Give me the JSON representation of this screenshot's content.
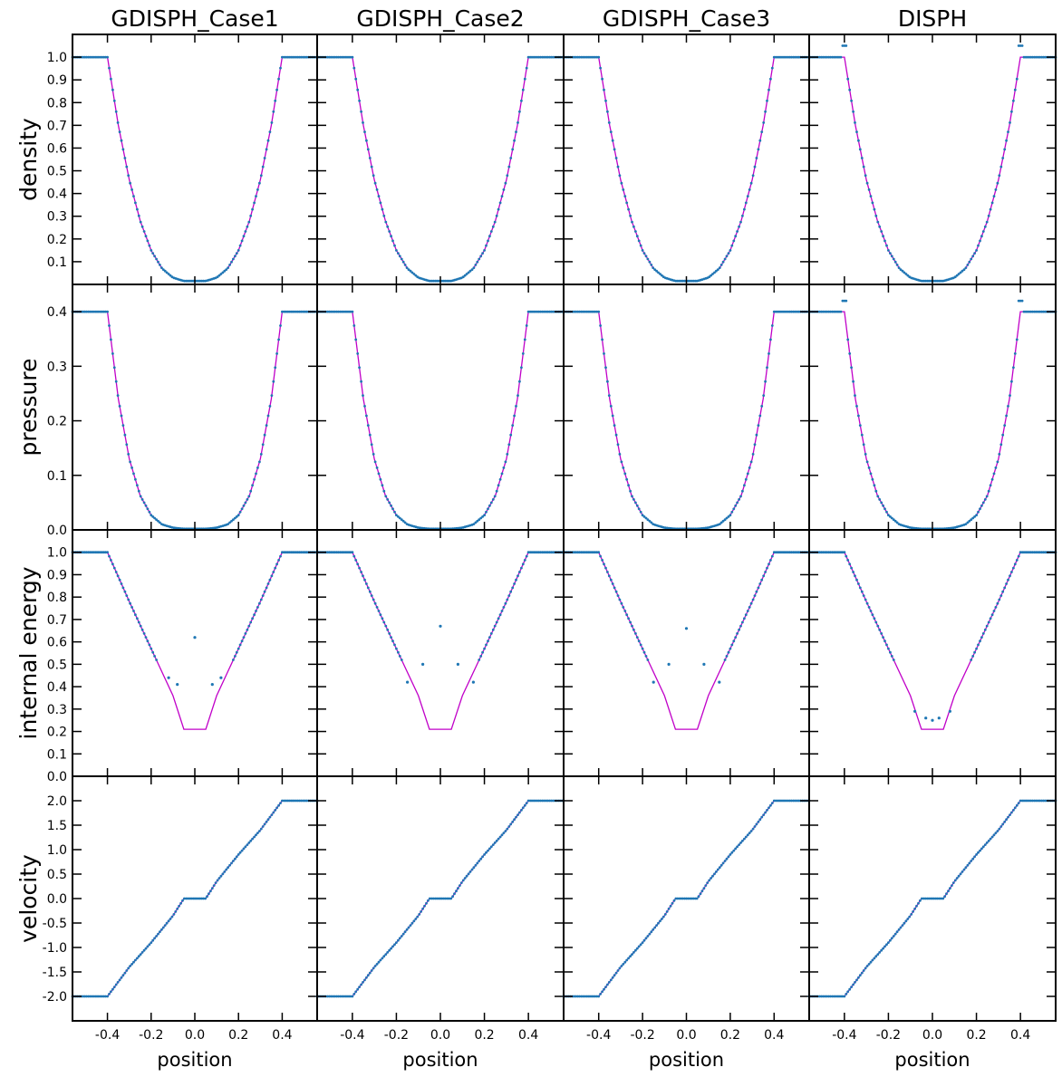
{
  "figure": {
    "column_titles": [
      "GDISPH_Case1",
      "GDISPH_Case2",
      "GDISPH_Case3",
      "DISPH"
    ],
    "row_labels": [
      "density",
      "pressure",
      "internal energy",
      "velocity"
    ],
    "xlabel": "position",
    "colors": {
      "exact": "#c000c8",
      "simulation": "#1f77b4"
    }
  },
  "chart_data": {
    "type": "scatter",
    "layout": "4x4 grid, shared x per column, shared y per row",
    "xlim": [
      -0.56,
      0.56
    ],
    "xticks": [
      -0.4,
      -0.2,
      0.0,
      0.2,
      0.4
    ],
    "xtick_labels": [
      "-0.4",
      "-0.2",
      "0.0",
      "0.2",
      "0.4"
    ],
    "rows": [
      {
        "ylabel": "density",
        "ylim": [
          0,
          1.1
        ],
        "yticks": [
          0.1,
          0.2,
          0.3,
          0.4,
          0.5,
          0.6,
          0.7,
          0.8,
          0.9,
          1.0
        ],
        "ytick_labels": [
          "0.1",
          "0.2",
          "0.3",
          "0.4",
          "0.5",
          "0.6",
          "0.7",
          "0.8",
          "0.9",
          "1.0"
        ],
        "exact": {
          "x": [
            -0.56,
            -0.5,
            -0.4,
            -0.35,
            -0.3,
            -0.25,
            -0.2,
            -0.15,
            -0.1,
            -0.05,
            0,
            0.05,
            0.1,
            0.15,
            0.2,
            0.25,
            0.3,
            0.35,
            0.4,
            0.5,
            0.56
          ],
          "y": [
            1.0,
            1.0,
            1.0,
            0.7,
            0.46,
            0.28,
            0.15,
            0.07,
            0.03,
            0.015,
            0.015,
            0.015,
            0.03,
            0.07,
            0.15,
            0.28,
            0.46,
            0.7,
            1.0,
            1.0,
            1.0
          ]
        }
      },
      {
        "ylabel": "pressure",
        "ylim": [
          0,
          0.45
        ],
        "yticks": [
          0.0,
          0.1,
          0.2,
          0.3,
          0.4
        ],
        "ytick_labels": [
          "0.0",
          "0.1",
          "0.2",
          "0.3",
          "0.4"
        ],
        "exact": {
          "x": [
            -0.56,
            -0.5,
            -0.4,
            -0.35,
            -0.3,
            -0.25,
            -0.2,
            -0.15,
            -0.1,
            -0.05,
            0,
            0.05,
            0.1,
            0.15,
            0.2,
            0.25,
            0.3,
            0.35,
            0.4,
            0.5,
            0.56
          ],
          "y": [
            0.4,
            0.4,
            0.4,
            0.24,
            0.13,
            0.063,
            0.027,
            0.01,
            0.004,
            0.002,
            0.002,
            0.002,
            0.004,
            0.01,
            0.027,
            0.063,
            0.13,
            0.24,
            0.4,
            0.4,
            0.4
          ]
        }
      },
      {
        "ylabel": "internal energy",
        "ylim": [
          0,
          1.1
        ],
        "yticks": [
          0.0,
          0.1,
          0.2,
          0.3,
          0.4,
          0.5,
          0.6,
          0.7,
          0.8,
          0.9,
          1.0
        ],
        "ytick_labels": [
          "0.0",
          "0.1",
          "0.2",
          "0.3",
          "0.4",
          "0.5",
          "0.6",
          "0.7",
          "0.8",
          "0.9",
          "1.0"
        ],
        "exact": {
          "x": [
            -0.56,
            -0.5,
            -0.4,
            -0.3,
            -0.2,
            -0.1,
            -0.05,
            0,
            0.05,
            0.1,
            0.2,
            0.3,
            0.4,
            0.5,
            0.56
          ],
          "y": [
            1.0,
            1.0,
            1.0,
            0.78,
            0.57,
            0.36,
            0.21,
            0.21,
            0.21,
            0.36,
            0.57,
            0.78,
            1.0,
            1.0,
            1.0
          ]
        }
      },
      {
        "ylabel": "velocity",
        "ylim": [
          -2.5,
          2.5
        ],
        "yticks": [
          -2.0,
          -1.5,
          -1.0,
          -0.5,
          0.0,
          0.5,
          1.0,
          1.5,
          2.0
        ],
        "ytick_labels": [
          "-2.0",
          "-1.5",
          "-1.0",
          "-0.5",
          "0.0",
          "0.5",
          "1.0",
          "1.5",
          "2.0"
        ],
        "exact": {
          "x": [
            -0.56,
            -0.5,
            -0.4,
            -0.3,
            -0.2,
            -0.1,
            -0.05,
            0,
            0.05,
            0.1,
            0.2,
            0.3,
            0.4,
            0.5,
            0.56
          ],
          "y": [
            -2.0,
            -2.0,
            -2.0,
            -1.4,
            -0.9,
            -0.35,
            0.0,
            0.0,
            0.0,
            0.35,
            0.9,
            1.4,
            2.0,
            2.0,
            2.0
          ]
        }
      }
    ],
    "simulation_anomalies": {
      "internal_energy_central_points": [
        {
          "panel": "GDISPH_Case1",
          "x": [
            -0.12,
            -0.08,
            0.0,
            0.08,
            0.12
          ],
          "y": [
            0.44,
            0.41,
            0.62,
            0.41,
            0.44
          ]
        },
        {
          "panel": "GDISPH_Case2",
          "x": [
            -0.15,
            -0.08,
            0.0,
            0.08,
            0.15
          ],
          "y": [
            0.42,
            0.5,
            0.67,
            0.5,
            0.42
          ]
        },
        {
          "panel": "GDISPH_Case3",
          "x": [
            -0.15,
            -0.08,
            0.0,
            0.08,
            0.15
          ],
          "y": [
            0.42,
            0.5,
            0.66,
            0.5,
            0.42
          ]
        },
        {
          "panel": "DISPH",
          "x": [
            -0.08,
            -0.03,
            0.0,
            0.03,
            0.08
          ],
          "y": [
            0.29,
            0.26,
            0.25,
            0.26,
            0.29
          ]
        }
      ],
      "disph_overshoot": {
        "density_peak": 1.05,
        "pressure_peak": 0.42
      }
    }
  }
}
